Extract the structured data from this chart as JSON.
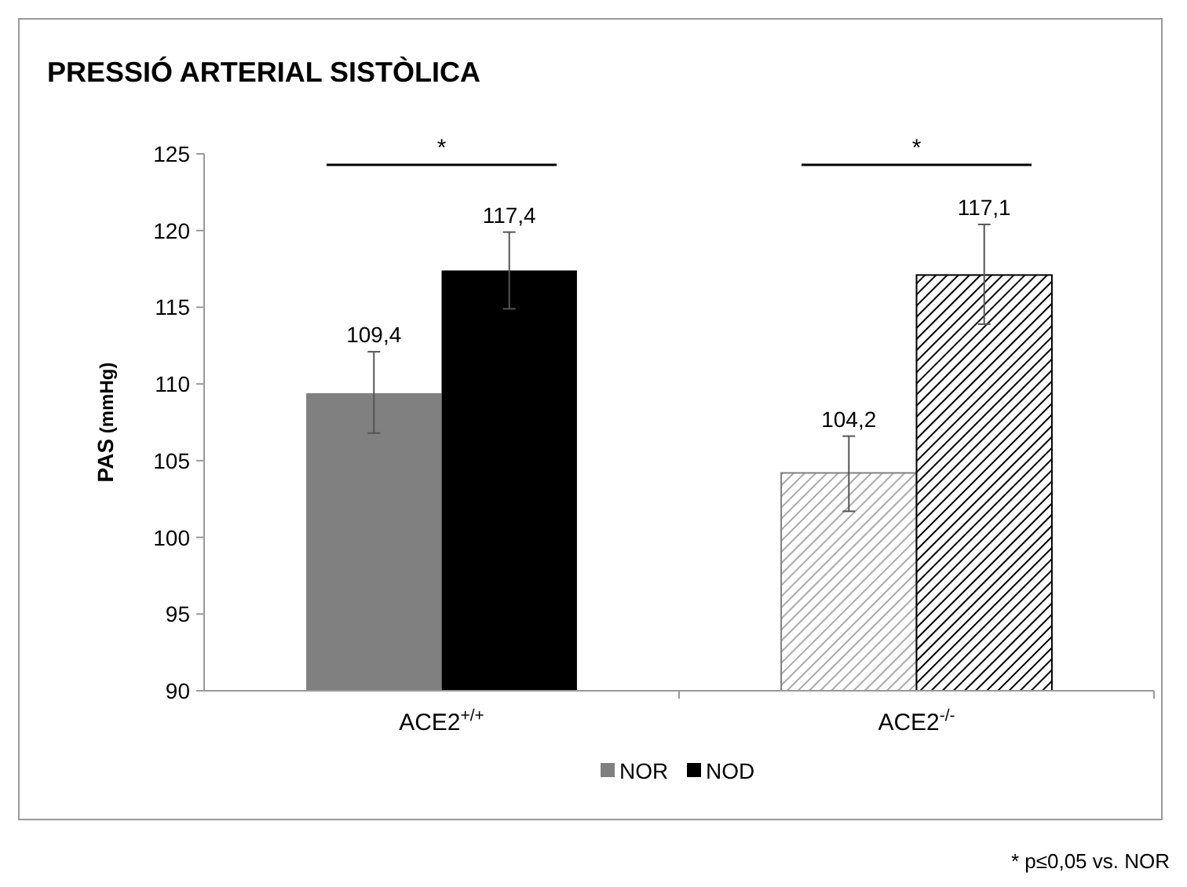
{
  "chart_data": {
    "type": "bar",
    "title": "PRESSIÓ ARTERIAL SISTÒLICA",
    "ylabel": "PAS (mmHg)",
    "categories": [
      "ACE2$^{+/+}$",
      "ACE2$^{-/-}$"
    ],
    "series": [
      {
        "name": "NOR",
        "color": "#808080",
        "values": [
          109.4,
          104.2
        ],
        "value_labels": [
          "109,4",
          "104,2"
        ],
        "errors": [
          [
            106.8,
            112.1
          ],
          [
            101.7,
            106.6
          ]
        ]
      },
      {
        "name": "NOD",
        "color": "#000000",
        "values": [
          117.4,
          117.1
        ],
        "value_labels": [
          "117,4",
          "117,1"
        ],
        "errors": [
          [
            114.9,
            119.9
          ],
          [
            113.9,
            120.4
          ]
        ]
      }
    ],
    "ylim": [
      90,
      125
    ],
    "yticks": [
      90,
      95,
      100,
      105,
      110,
      115,
      120,
      125
    ],
    "grid": false,
    "legend": "bottom",
    "annotations": [
      "*",
      "*",
      "* p≤0,05 vs. NOR"
    ]
  }
}
